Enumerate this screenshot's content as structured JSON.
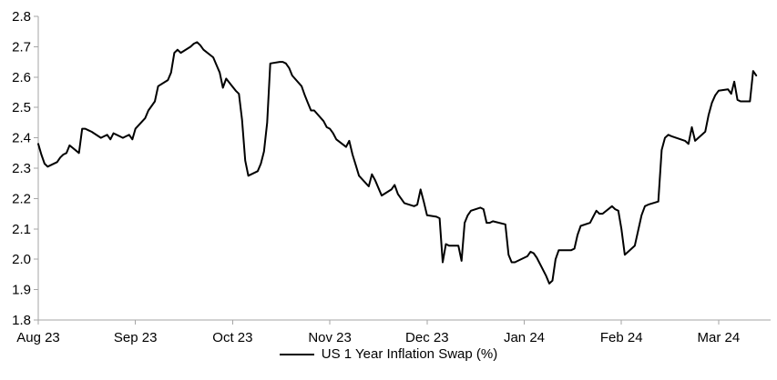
{
  "style": {
    "background": "#ffffff",
    "axis_color": "#a6a6a6",
    "text_color": "#000000",
    "line_color": "#000000"
  },
  "chart_data": {
    "type": "line",
    "title": "",
    "xlabel": "",
    "ylabel": "",
    "ylim": [
      1.8,
      2.8
    ],
    "ytick_step": 0.1,
    "yticklabels": [
      "1.8",
      "1.9",
      "2.0",
      "2.1",
      "2.2",
      "2.3",
      "2.4",
      "2.5",
      "2.6",
      "2.7",
      "2.8"
    ],
    "xticklabels": [
      "Aug 23",
      "Sep 23",
      "Oct 23",
      "Nov 23",
      "Dec 23",
      "Jan 24",
      "Feb 24",
      "Mar 24"
    ],
    "grid": false,
    "legend_position": "bottom-center",
    "series": [
      {
        "name": "US 1 Year Inflation Swap (%)",
        "color": "#000000",
        "x": [
          "2023-08-01",
          "2023-08-02",
          "2023-08-03",
          "2023-08-04",
          "2023-08-07",
          "2023-08-08",
          "2023-08-09",
          "2023-08-10",
          "2023-08-11",
          "2023-08-14",
          "2023-08-15",
          "2023-08-16",
          "2023-08-17",
          "2023-08-18",
          "2023-08-21",
          "2023-08-22",
          "2023-08-23",
          "2023-08-24",
          "2023-08-25",
          "2023-08-28",
          "2023-08-29",
          "2023-08-30",
          "2023-08-31",
          "2023-09-01",
          "2023-09-04",
          "2023-09-05",
          "2023-09-06",
          "2023-09-07",
          "2023-09-08",
          "2023-09-11",
          "2023-09-12",
          "2023-09-13",
          "2023-09-14",
          "2023-09-15",
          "2023-09-18",
          "2023-09-19",
          "2023-09-20",
          "2023-09-21",
          "2023-09-22",
          "2023-09-25",
          "2023-09-26",
          "2023-09-27",
          "2023-09-28",
          "2023-09-29",
          "2023-10-02",
          "2023-10-03",
          "2023-10-04",
          "2023-10-05",
          "2023-10-06",
          "2023-10-09",
          "2023-10-10",
          "2023-10-11",
          "2023-10-12",
          "2023-10-13",
          "2023-10-16",
          "2023-10-17",
          "2023-10-18",
          "2023-10-19",
          "2023-10-20",
          "2023-10-23",
          "2023-10-24",
          "2023-10-25",
          "2023-10-26",
          "2023-10-27",
          "2023-10-30",
          "2023-10-31",
          "2023-11-01",
          "2023-11-02",
          "2023-11-03",
          "2023-11-06",
          "2023-11-07",
          "2023-11-08",
          "2023-11-09",
          "2023-11-10",
          "2023-11-13",
          "2023-11-14",
          "2023-11-15",
          "2023-11-16",
          "2023-11-17",
          "2023-11-20",
          "2023-11-21",
          "2023-11-22",
          "2023-11-24",
          "2023-11-27",
          "2023-11-28",
          "2023-11-29",
          "2023-11-30",
          "2023-12-01",
          "2023-12-04",
          "2023-12-05",
          "2023-12-06",
          "2023-12-07",
          "2023-12-08",
          "2023-12-11",
          "2023-12-12",
          "2023-12-13",
          "2023-12-14",
          "2023-12-15",
          "2023-12-18",
          "2023-12-19",
          "2023-12-20",
          "2023-12-21",
          "2023-12-22",
          "2023-12-26",
          "2023-12-27",
          "2023-12-28",
          "2023-12-29",
          "2024-01-02",
          "2024-01-03",
          "2024-01-04",
          "2024-01-05",
          "2024-01-08",
          "2024-01-09",
          "2024-01-10",
          "2024-01-11",
          "2024-01-12",
          "2024-01-16",
          "2024-01-17",
          "2024-01-18",
          "2024-01-19",
          "2024-01-22",
          "2024-01-23",
          "2024-01-24",
          "2024-01-25",
          "2024-01-26",
          "2024-01-29",
          "2024-01-30",
          "2024-01-31",
          "2024-02-01",
          "2024-02-02",
          "2024-02-05",
          "2024-02-06",
          "2024-02-07",
          "2024-02-08",
          "2024-02-09",
          "2024-02-12",
          "2024-02-13",
          "2024-02-14",
          "2024-02-15",
          "2024-02-16",
          "2024-02-20",
          "2024-02-21",
          "2024-02-22",
          "2024-02-23",
          "2024-02-26",
          "2024-02-27",
          "2024-02-28",
          "2024-02-29",
          "2024-03-01",
          "2024-03-04",
          "2024-03-05",
          "2024-03-06",
          "2024-03-07",
          "2024-03-08",
          "2024-03-11",
          "2024-03-12",
          "2024-03-13"
        ],
        "values": [
          2.38,
          2.345,
          2.315,
          2.305,
          2.32,
          2.335,
          2.345,
          2.35,
          2.375,
          2.35,
          2.43,
          2.43,
          2.425,
          2.42,
          2.4,
          2.405,
          2.41,
          2.395,
          2.415,
          2.4,
          2.405,
          2.41,
          2.395,
          2.43,
          2.465,
          2.49,
          2.505,
          2.52,
          2.57,
          2.59,
          2.615,
          2.68,
          2.69,
          2.68,
          2.7,
          2.71,
          2.715,
          2.705,
          2.69,
          2.665,
          2.64,
          2.615,
          2.565,
          2.595,
          2.555,
          2.545,
          2.46,
          2.325,
          2.275,
          2.29,
          2.315,
          2.355,
          2.45,
          2.645,
          2.65,
          2.65,
          2.645,
          2.63,
          2.605,
          2.57,
          2.54,
          2.515,
          2.49,
          2.49,
          2.455,
          2.435,
          2.43,
          2.415,
          2.395,
          2.37,
          2.39,
          2.345,
          2.31,
          2.275,
          2.24,
          2.28,
          2.26,
          2.235,
          2.21,
          2.23,
          2.245,
          2.215,
          2.185,
          2.175,
          2.18,
          2.23,
          2.19,
          2.145,
          2.14,
          2.135,
          1.99,
          2.05,
          2.045,
          2.045,
          1.995,
          2.12,
          2.145,
          2.16,
          2.17,
          2.165,
          2.12,
          2.12,
          2.125,
          2.115,
          2.015,
          1.99,
          1.99,
          2.01,
          2.025,
          2.02,
          2.005,
          1.945,
          1.92,
          1.93,
          2.0,
          2.03,
          2.03,
          2.035,
          2.08,
          2.11,
          2.12,
          2.14,
          2.16,
          2.15,
          2.15,
          2.175,
          2.165,
          2.16,
          2.1,
          2.015,
          2.045,
          2.095,
          2.145,
          2.175,
          2.18,
          2.19,
          2.36,
          2.4,
          2.41,
          2.405,
          2.39,
          2.38,
          2.435,
          2.39,
          2.42,
          2.475,
          2.515,
          2.54,
          2.555,
          2.56,
          2.545,
          2.585,
          2.525,
          2.52,
          2.52,
          2.62,
          2.605
        ]
      }
    ]
  },
  "legend": {
    "label": "US 1 Year Inflation Swap (%)"
  }
}
